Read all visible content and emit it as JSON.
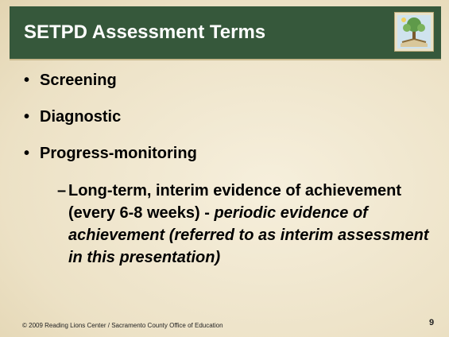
{
  "header": {
    "title": "SETPD Assessment Terms"
  },
  "bullets": [
    "Screening",
    "Diagnostic",
    "Progress-monitoring"
  ],
  "sub_bullet": {
    "text": "Long-term, interim evidence of achievement (every 6-8 weeks) -",
    "italic_text": "periodic evidence of achievement (referred to as interim assessment in this presentation)"
  },
  "footer": {
    "credit": "© 2009 Reading Lions Center / Sacramento County Office of Education",
    "page_number": "9"
  }
}
